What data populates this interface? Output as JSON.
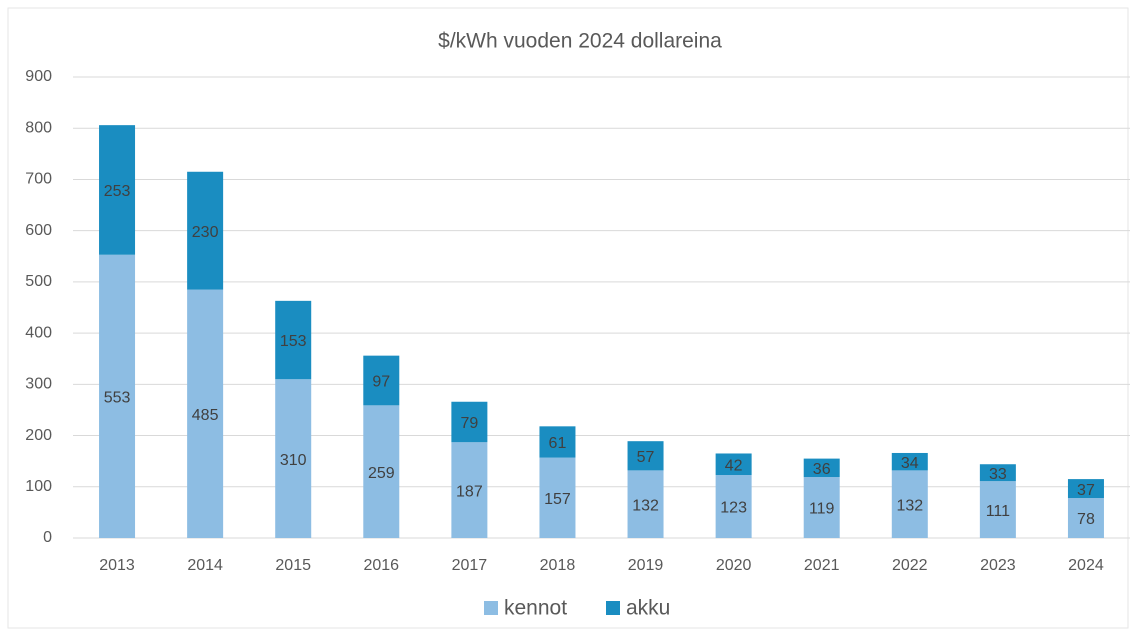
{
  "chart_data": {
    "type": "bar",
    "stacked": true,
    "title": "$/kWh vuoden 2024 dollareina",
    "categories": [
      "2013",
      "2014",
      "2015",
      "2016",
      "2017",
      "2018",
      "2019",
      "2020",
      "2021",
      "2022",
      "2023",
      "2024"
    ],
    "series": [
      {
        "name": "kennot",
        "color": "#8dbde3",
        "values": [
          553,
          485,
          310,
          259,
          187,
          157,
          132,
          123,
          119,
          132,
          111,
          78
        ]
      },
      {
        "name": "akku",
        "color": "#1a8dc1",
        "values": [
          253,
          230,
          153,
          97,
          79,
          61,
          57,
          42,
          36,
          34,
          33,
          37
        ]
      }
    ],
    "ylim": [
      0,
      900
    ],
    "yticks": [
      0,
      100,
      200,
      300,
      400,
      500,
      600,
      700,
      800,
      900
    ],
    "grid": true,
    "legend": "bottom"
  }
}
